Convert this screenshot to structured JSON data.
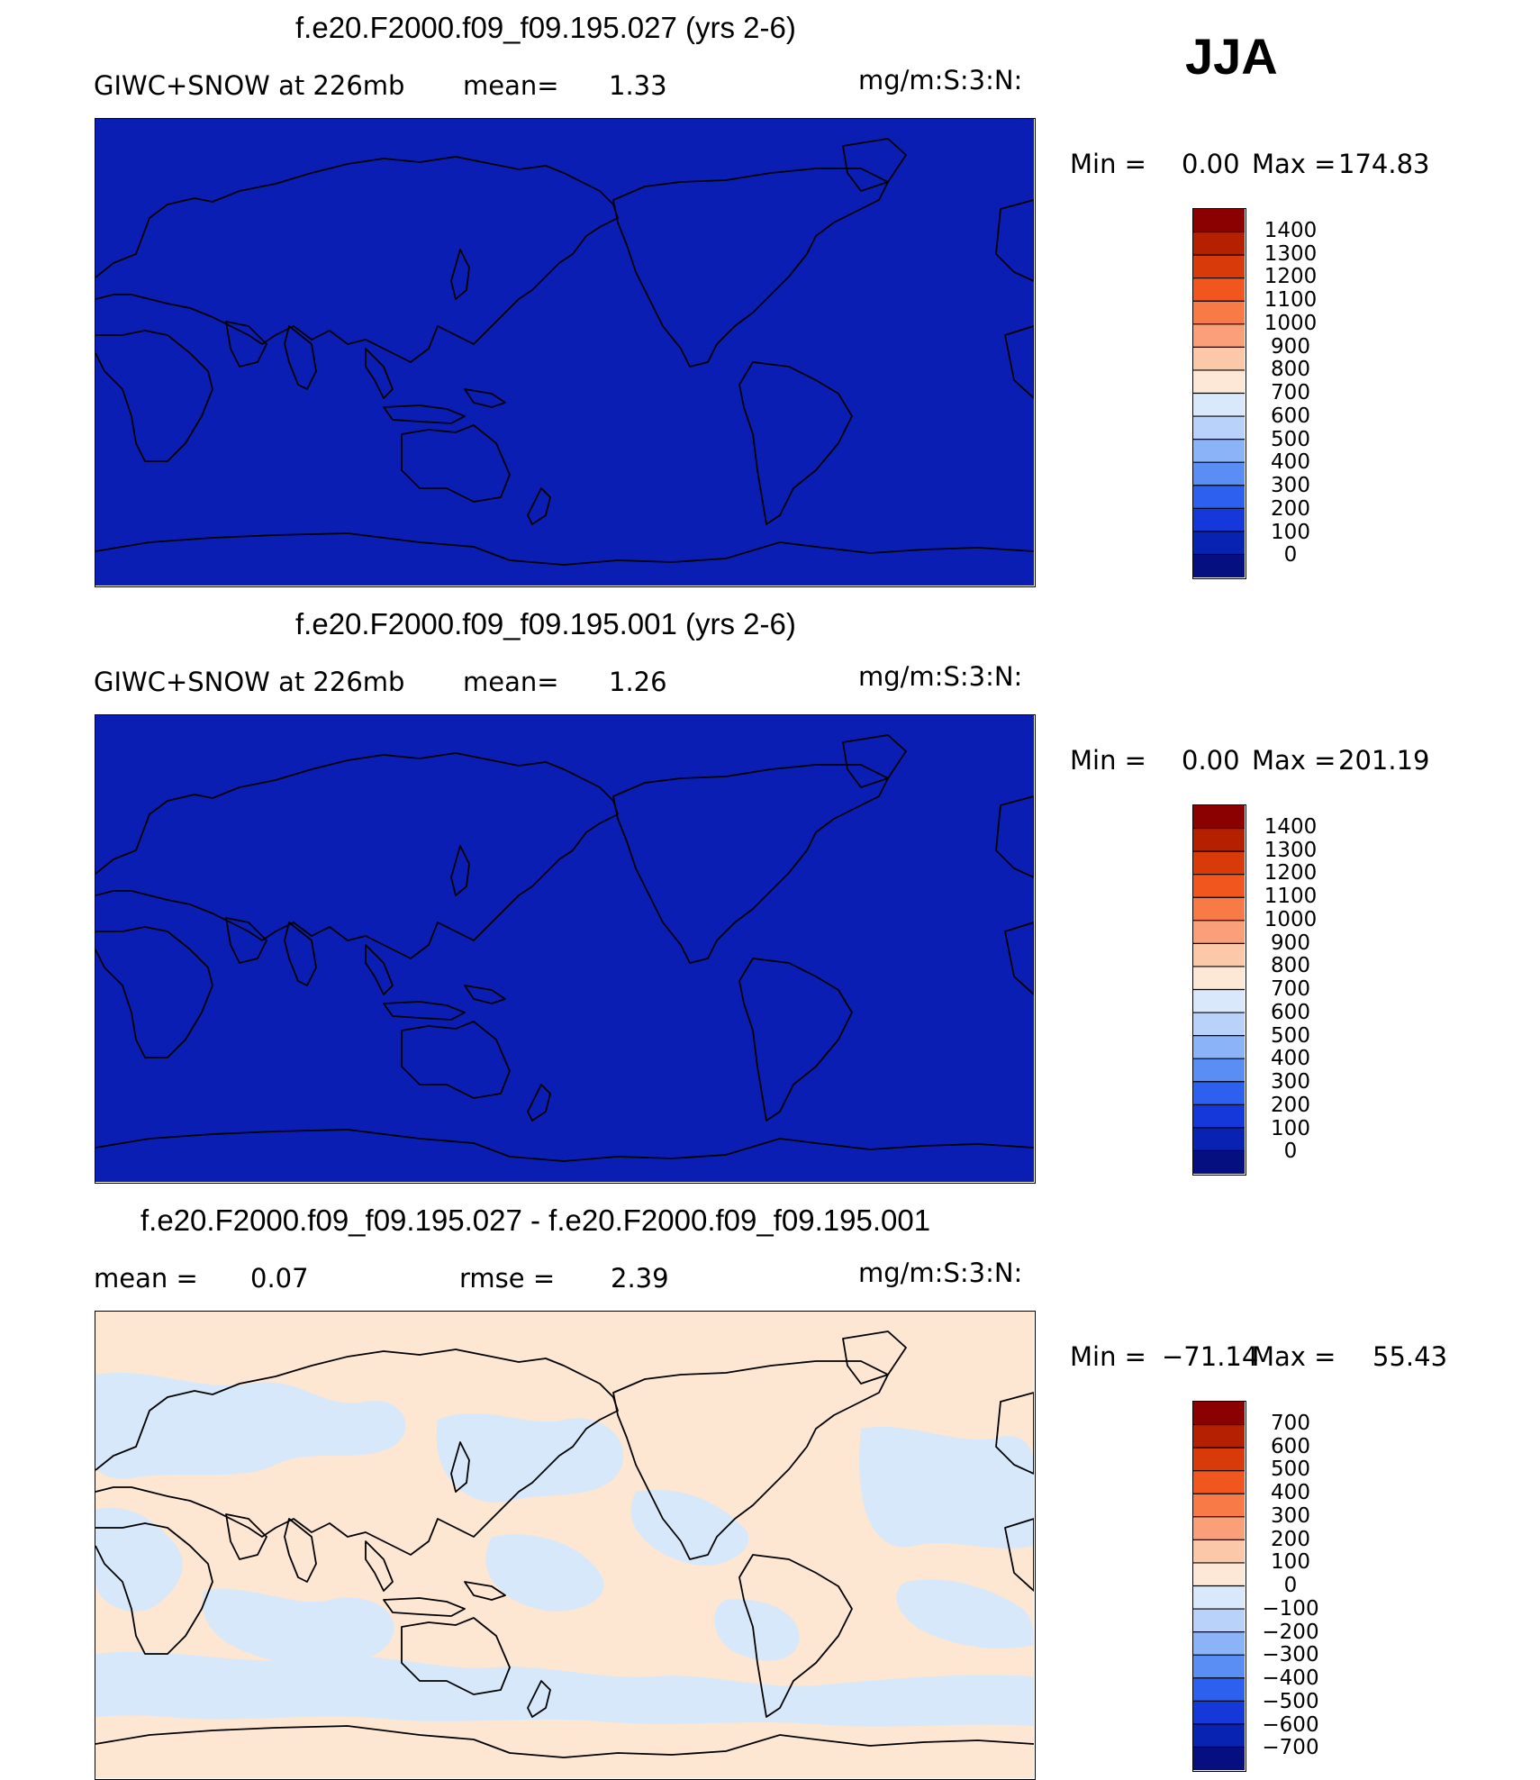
{
  "season": "JJA",
  "colors": {
    "ocean_blue": "#0a1eb4",
    "diff_positive": "#fde6d2",
    "diff_negative": "#d7e8fa",
    "coast": "#000000"
  },
  "panels": [
    {
      "title": "f.e20.F2000.f09_f09.195.027 (yrs 2-6)",
      "left_text": "GIWC+SNOW at 226mb",
      "mid_label": "mean=",
      "mid_value": "1.33",
      "units": "mg/m:S:3:N:",
      "min_label": "Min =",
      "min_value": "0.00",
      "max_label": "Max =",
      "max_value": "174.83",
      "fill": "ocean_blue",
      "colorbar": {
        "labels": [
          "1400",
          "1300",
          "1200",
          "1100",
          "1000",
          "900",
          "800",
          "700",
          "600",
          "500",
          "400",
          "300",
          "200",
          "100",
          "0"
        ],
        "colors": [
          "#8b0000",
          "#b52000",
          "#d83a0a",
          "#f0561e",
          "#f87a46",
          "#fb9f78",
          "#fcc8aa",
          "#fde7d6",
          "#d9e8fb",
          "#b8d2fa",
          "#8bb3f7",
          "#5a8ef5",
          "#2d60ef",
          "#1438d9",
          "#0822b2",
          "#060f80"
        ]
      }
    },
    {
      "title": "f.e20.F2000.f09_f09.195.001 (yrs 2-6)",
      "left_text": "GIWC+SNOW at 226mb",
      "mid_label": "mean=",
      "mid_value": "1.26",
      "units": "mg/m:S:3:N:",
      "min_label": "Min =",
      "min_value": "0.00",
      "max_label": "Max =",
      "max_value": "201.19",
      "fill": "ocean_blue",
      "colorbar": {
        "labels": [
          "1400",
          "1300",
          "1200",
          "1100",
          "1000",
          "900",
          "800",
          "700",
          "600",
          "500",
          "400",
          "300",
          "200",
          "100",
          "0"
        ],
        "colors": [
          "#8b0000",
          "#b52000",
          "#d83a0a",
          "#f0561e",
          "#f87a46",
          "#fb9f78",
          "#fcc8aa",
          "#fde7d6",
          "#d9e8fb",
          "#b8d2fa",
          "#8bb3f7",
          "#5a8ef5",
          "#2d60ef",
          "#1438d9",
          "#0822b2",
          "#060f80"
        ]
      }
    },
    {
      "title": "f.e20.F2000.f09_f09.195.027 - f.e20.F2000.f09_f09.195.001",
      "left_label": "mean =",
      "left_value": "0.07",
      "mid_label": "rmse =",
      "mid_value": "2.39",
      "units": "mg/m:S:3:N:",
      "min_label": "Min =",
      "min_value": "−71.14",
      "max_label": "Max =",
      "max_value": "55.43",
      "fill": "diff",
      "colorbar": {
        "labels": [
          "700",
          "600",
          "500",
          "400",
          "300",
          "200",
          "100",
          "0",
          "−100",
          "−200",
          "−300",
          "−400",
          "−500",
          "−600",
          "−700"
        ],
        "colors": [
          "#8b0000",
          "#b52000",
          "#d83a0a",
          "#f0561e",
          "#f87a46",
          "#fb9f78",
          "#fcc8aa",
          "#fde7d6",
          "#d9e8fb",
          "#b8d2fa",
          "#8bb3f7",
          "#5a8ef5",
          "#2d60ef",
          "#1438d9",
          "#0822b2",
          "#060f80"
        ]
      }
    }
  ]
}
